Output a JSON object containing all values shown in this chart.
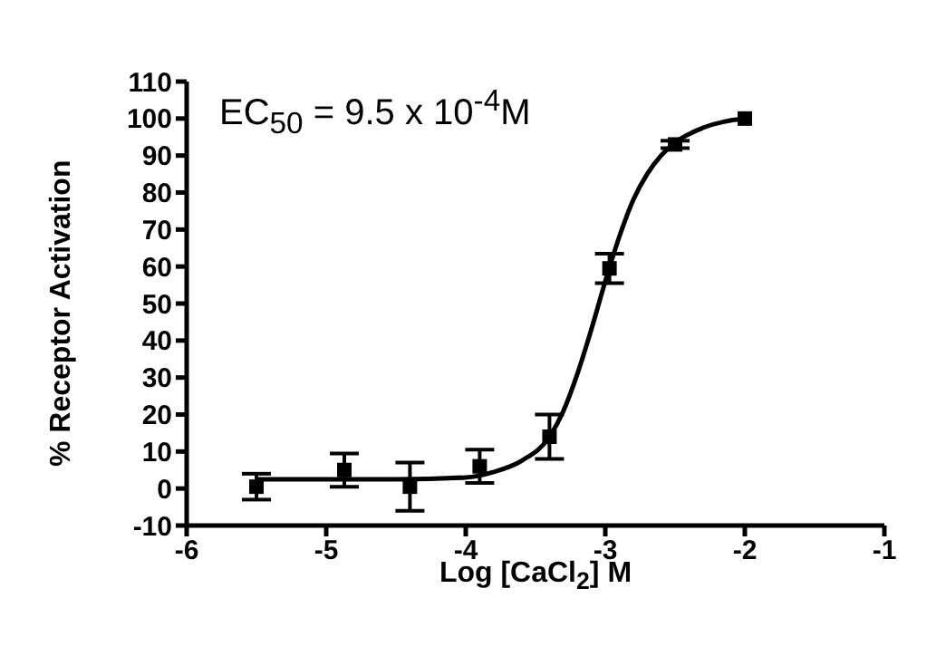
{
  "chart_data": {
    "type": "scatter",
    "xlabel": "Log [CaCl$_{2}$] M",
    "ylabel": "% Receptor Activation",
    "annotations": [
      "EC$_{50}$ = 9.5 x 10$^{-4}$M"
    ],
    "xlim": [
      -6,
      -1
    ],
    "xticks": [
      -6,
      -5,
      -4,
      -3,
      -2,
      -1
    ],
    "ylim": [
      -10,
      110
    ],
    "yticks": [
      -10,
      0,
      10,
      20,
      30,
      40,
      50,
      60,
      70,
      80,
      90,
      100,
      110
    ],
    "marker": "square",
    "series": [
      {
        "color": "#000000",
        "x": [
          -5.5,
          -4.87,
          -4.4,
          -3.9,
          -3.4,
          -2.97,
          -2.5,
          -2.0
        ],
        "values": [
          0.5,
          5,
          0.5,
          6,
          14,
          59.5,
          93,
          100
        ],
        "errors": [
          3.5,
          4.5,
          6.5,
          4.5,
          6,
          4,
          1,
          null
        ]
      },
      {
        "type": "line",
        "color": "#000000",
        "marker": "none",
        "x": [
          -5.5,
          -4.5,
          -4.0,
          -3.8,
          -3.6,
          -3.4,
          -3.3,
          -3.2,
          -3.1,
          -3.0,
          -2.9,
          -2.8,
          -2.7,
          -2.6,
          -2.5,
          -2.3,
          -2.0
        ],
        "values": [
          2.5,
          2.5,
          3,
          4.5,
          7.5,
          14,
          21,
          31,
          43,
          56,
          68,
          78,
          85,
          90,
          93.5,
          97.5,
          100
        ]
      }
    ]
  }
}
